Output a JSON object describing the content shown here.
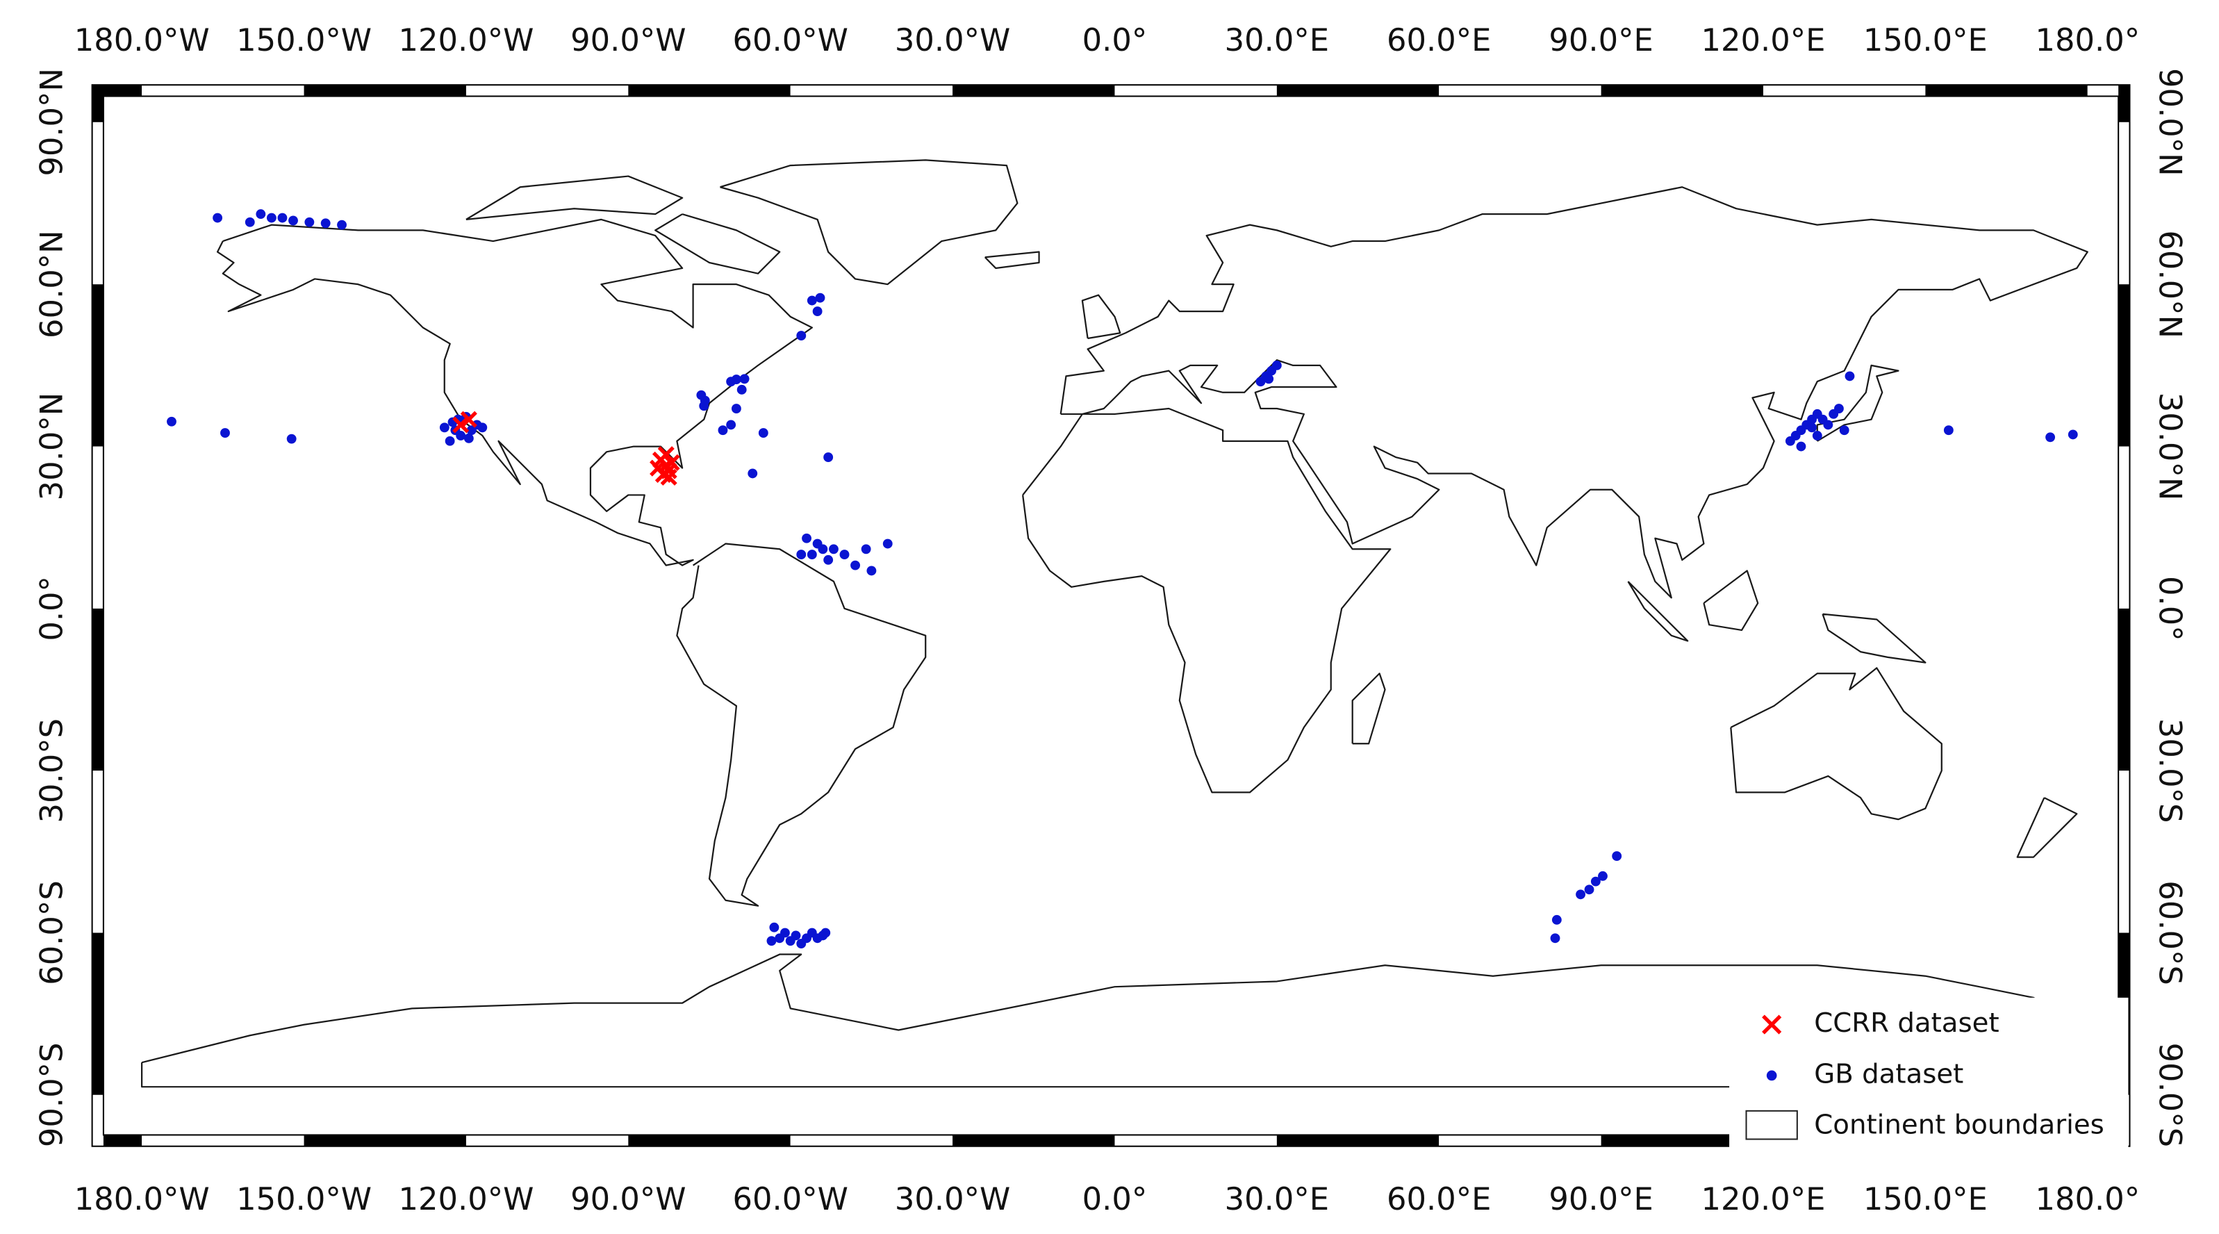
{
  "chart_data": {
    "type": "scatter",
    "xlim": [
      -189.2,
      187.8
    ],
    "ylim": [
      -99.5,
      96.9
    ],
    "xticks": [
      {
        "value": -180,
        "label": "180.0°W"
      },
      {
        "value": -150,
        "label": "150.0°W"
      },
      {
        "value": -120,
        "label": "120.0°W"
      },
      {
        "value": -90,
        "label": "90.0°W"
      },
      {
        "value": -60,
        "label": "60.0°W"
      },
      {
        "value": -30,
        "label": "30.0°W"
      },
      {
        "value": 0,
        "label": "0.0°"
      },
      {
        "value": 30,
        "label": "30.0°E"
      },
      {
        "value": 60,
        "label": "60.0°E"
      },
      {
        "value": 90,
        "label": "90.0°E"
      },
      {
        "value": 120,
        "label": "120.0°E"
      },
      {
        "value": 150,
        "label": "150.0°E"
      },
      {
        "value": 180,
        "label": "180.0°"
      }
    ],
    "yticks": [
      {
        "value": 90,
        "label": "90.0°N"
      },
      {
        "value": 60,
        "label": "60.0°N"
      },
      {
        "value": 30,
        "label": "30.0°N"
      },
      {
        "value": 0,
        "label": "0.0°"
      },
      {
        "value": -30,
        "label": "30.0°S"
      },
      {
        "value": -60,
        "label": "60.0°S"
      },
      {
        "value": -90,
        "label": "90.0°S"
      }
    ],
    "legend": "lower right",
    "series": [
      {
        "name": "CCRR dataset",
        "color": "#ff0000",
        "marker": "x",
        "x": [
          -119.5,
          -121,
          -83,
          -84,
          -82.5,
          -83.5,
          -82,
          -84.5,
          -83,
          -82.5
        ],
        "y": [
          35,
          34,
          26.5,
          27.5,
          25.5,
          24.8,
          27,
          26,
          28.5,
          24.3
        ]
      },
      {
        "name": "GB dataset",
        "color": "#0a14d2",
        "marker": "dot",
        "x": [
          -166,
          -160,
          -158,
          -156,
          -154,
          -152,
          -149,
          -146,
          -143,
          -174.5,
          -164.6,
          -152.3,
          -124,
          -122.5,
          -121,
          -120,
          -119,
          -118,
          -123,
          -117,
          -121.5,
          -119.5,
          -122,
          -75.8,
          -70,
          -69,
          -71,
          -68.5,
          -76,
          -76.5,
          -72.5,
          -71,
          -70,
          -65,
          -67,
          -53,
          -56,
          -54.5,
          -55,
          -58,
          -57,
          -55,
          -54,
          -52,
          -50,
          -48,
          -45,
          -46,
          -42,
          -56,
          -58,
          -53,
          -63,
          -62,
          -61,
          -60,
          -59,
          -58,
          -57,
          -56,
          -55,
          -54,
          -53.5,
          -63.5,
          27,
          28,
          29,
          30,
          28.5,
          125,
          126,
          127,
          128,
          129,
          130,
          131,
          132,
          133,
          134,
          136,
          127,
          135,
          130,
          129,
          154.3,
          173.1,
          177.3,
          81.5,
          81.8,
          86.2,
          87.8,
          89,
          90.3,
          92.9
        ],
        "y": [
          72.3,
          71.5,
          73,
          72.3,
          72.3,
          71.8,
          71.5,
          71.3,
          71,
          34.6,
          32.5,
          31.4,
          33.5,
          34.5,
          32,
          35.5,
          33,
          34,
          31,
          33.5,
          35,
          31.5,
          33,
          38.5,
          42.4,
          40.5,
          42,
          42.5,
          37.5,
          39.5,
          33,
          34,
          37,
          32.5,
          25,
          28,
          57,
          57.5,
          55,
          50.5,
          13,
          12,
          11,
          11,
          10,
          8,
          7,
          11,
          12,
          10,
          10,
          9,
          -59,
          -61,
          -60,
          -61.5,
          -60.5,
          -62,
          -61,
          -60,
          -61,
          -60.5,
          -60,
          -61.5,
          42,
          43,
          44,
          45,
          42.5,
          31,
          32,
          33,
          34,
          35,
          36,
          35,
          34,
          36,
          37,
          43,
          30,
          33,
          32,
          33.5,
          33,
          31.7,
          32.2,
          -61,
          -57.6,
          -52.9,
          -52,
          -50.5,
          -49.5,
          -45.8
        ]
      }
    ],
    "boundaries": {
      "name": "Continent boundaries"
    }
  }
}
